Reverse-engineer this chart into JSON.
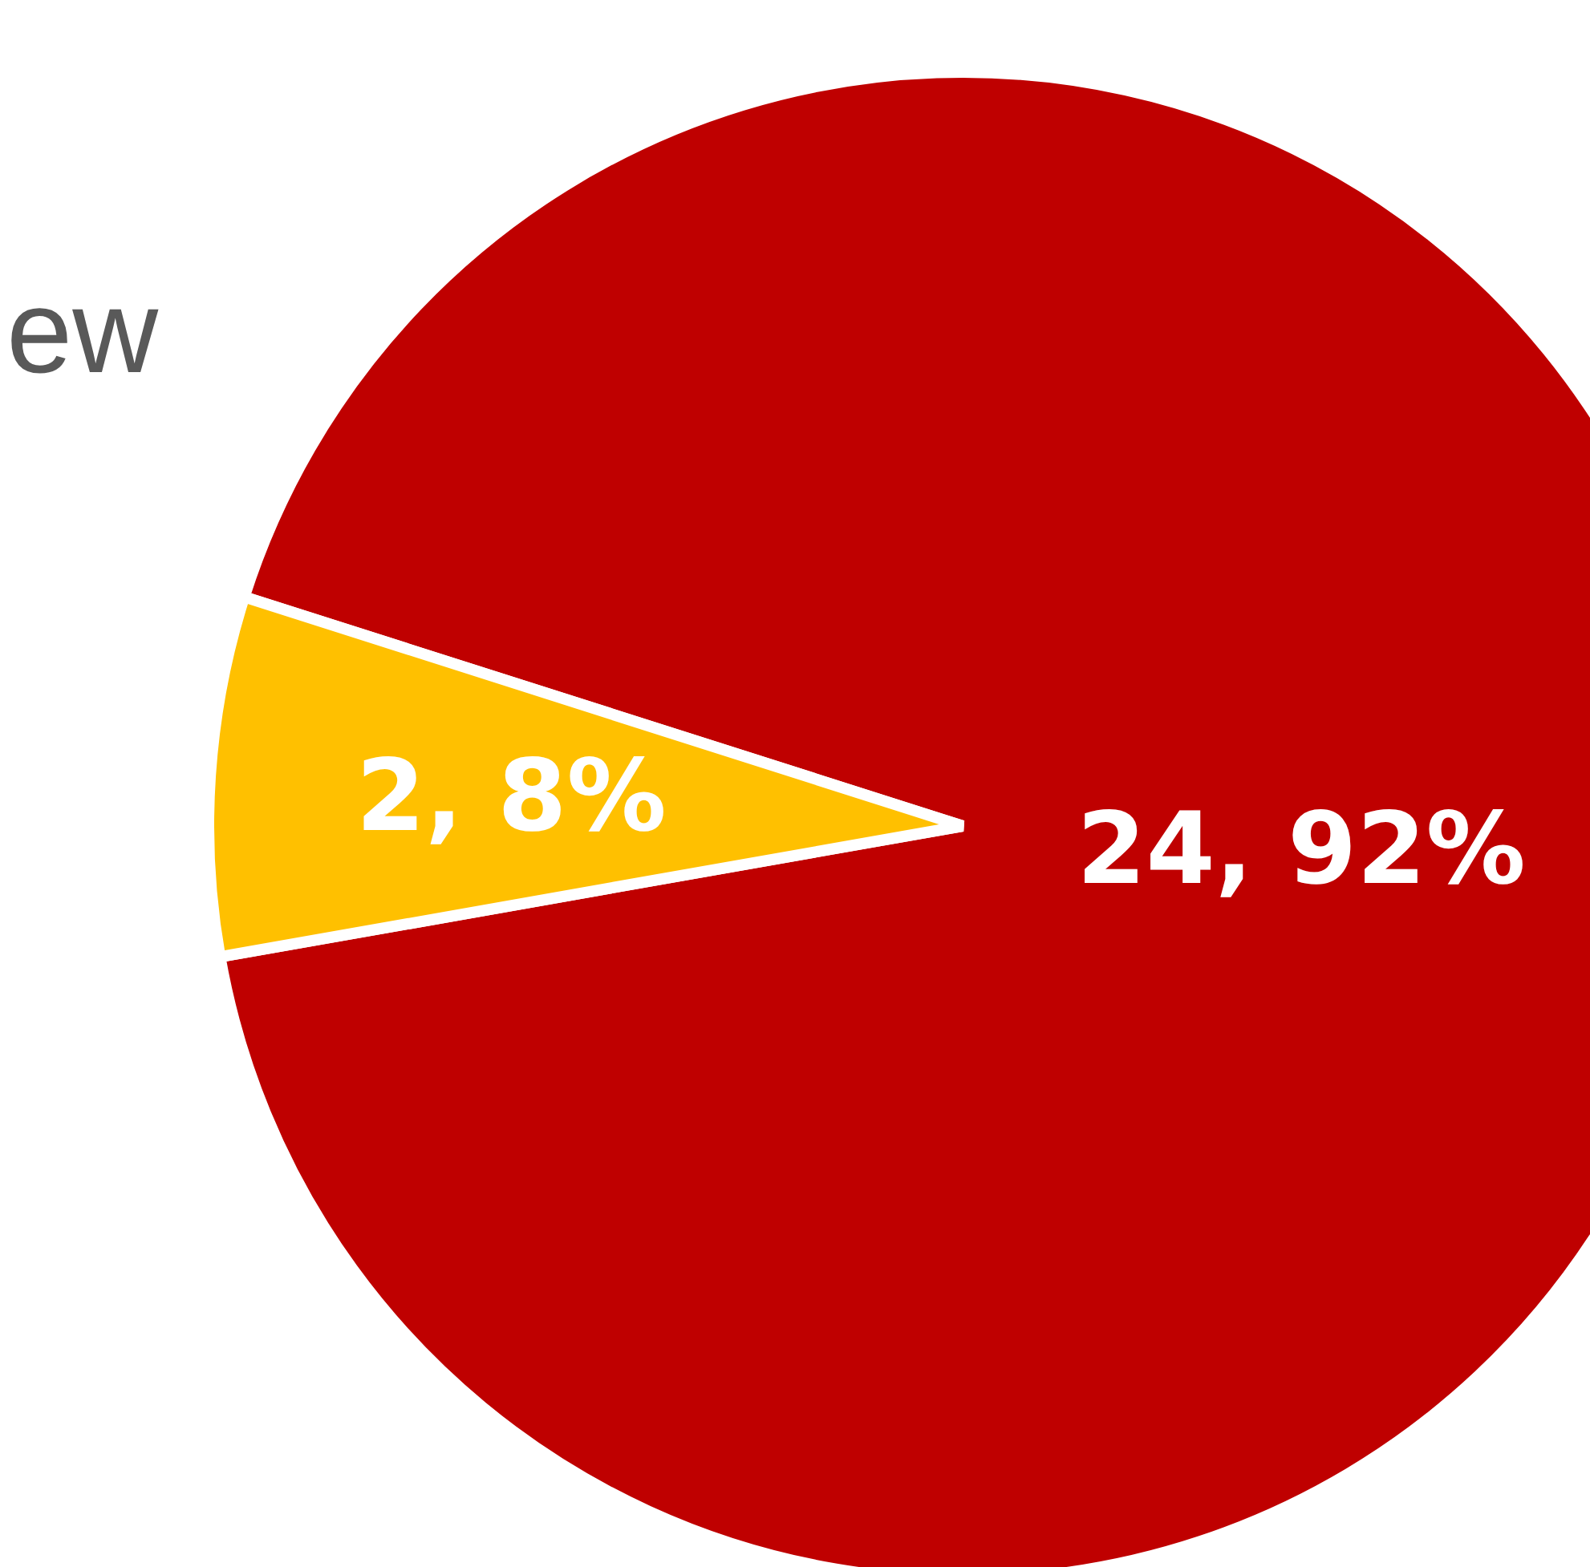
{
  "chart_data": {
    "type": "pie",
    "title": "ew",
    "categories": [
      null,
      null
    ],
    "values": [
      24,
      2
    ],
    "colors": [
      "#bf0000",
      "#ffc000"
    ],
    "value_labels": [
      "24, 92%",
      "2, 8%"
    ]
  }
}
